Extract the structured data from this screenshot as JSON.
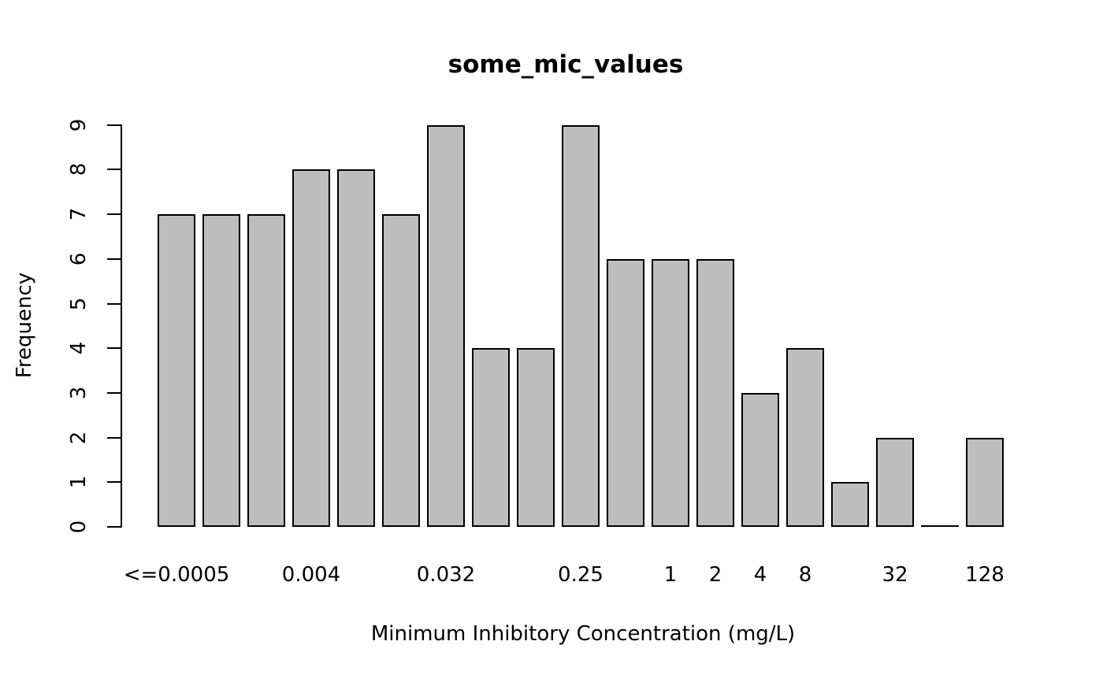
{
  "chart_data": {
    "type": "bar",
    "subtype": "histogram",
    "title": "some_mic_values",
    "xlabel": "Minimum Inhibitory Concentration (mg/L)",
    "ylabel": "Frequency",
    "n_bars": 19,
    "values": [
      7,
      7,
      7,
      8,
      8,
      7,
      9,
      4,
      4,
      9,
      6,
      6,
      6,
      3,
      4,
      1,
      2,
      0,
      2
    ],
    "x_tick_labels": [
      {
        "bar_index": 0,
        "label": "<=0.0005"
      },
      {
        "bar_index": 3,
        "label": "0.004"
      },
      {
        "bar_index": 6,
        "label": "0.032"
      },
      {
        "bar_index": 9,
        "label": "0.25"
      },
      {
        "bar_index": 11,
        "label": "1"
      },
      {
        "bar_index": 12,
        "label": "2"
      },
      {
        "bar_index": 13,
        "label": "4"
      },
      {
        "bar_index": 14,
        "label": "8"
      },
      {
        "bar_index": 16,
        "label": "32"
      },
      {
        "bar_index": 18,
        "label": "128"
      }
    ],
    "y_ticks": [
      "0",
      "1",
      "2",
      "3",
      "4",
      "5",
      "6",
      "7",
      "8",
      "9"
    ],
    "ylim": [
      0,
      9
    ],
    "grid": false,
    "legend_position": null,
    "colors": {
      "bar_fill": "#bebebe",
      "bar_border": "#000000",
      "axis": "#000000",
      "text": "#000000",
      "background": "#ffffff"
    }
  }
}
